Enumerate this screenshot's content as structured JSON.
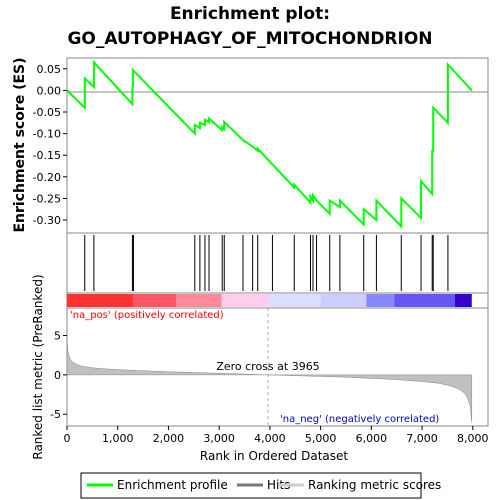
{
  "title_line1": "Enrichment plot:",
  "title_line2": "GO_AUTOPHAGY_OF_MITOCHONDRION",
  "chart_data": {
    "type": "line",
    "es_panel": {
      "ylabel": "Enrichment score (ES)",
      "ylim": [
        -0.33,
        0.075
      ],
      "yticks": [
        "0.05",
        "0.00",
        "-0.05",
        "-0.10",
        "-0.15",
        "-0.20",
        "-0.25",
        "-0.30"
      ],
      "ytick_values": [
        0.05,
        0.0,
        -0.05,
        -0.1,
        -0.15,
        -0.2,
        -0.25,
        -0.3
      ],
      "series": [
        {
          "name": "Enrichment profile",
          "color": "#00ff00",
          "x": [
            0,
            350,
            350,
            530,
            530,
            1290,
            1290,
            1300,
            1300,
            2520,
            2520,
            2620,
            2620,
            2720,
            2720,
            2800,
            2800,
            3060,
            3060,
            3100,
            3100,
            3470,
            3470,
            3660,
            3660,
            3760,
            3760,
            4480,
            4480,
            4800,
            4800,
            4850,
            4850,
            4920,
            4920,
            5180,
            5180,
            5380,
            5380,
            5850,
            5850,
            6100,
            6100,
            6590,
            6590,
            6980,
            6980,
            7200,
            7200,
            7220,
            7220,
            7510,
            7510,
            7980
          ],
          "y": [
            0.0,
            -0.04,
            0.028,
            0.008,
            0.065,
            -0.032,
            0.008,
            0.01,
            0.047,
            -0.1,
            -0.08,
            -0.087,
            -0.075,
            -0.08,
            -0.068,
            -0.073,
            -0.065,
            -0.092,
            -0.085,
            -0.09,
            -0.073,
            -0.115,
            -0.115,
            -0.13,
            -0.13,
            -0.14,
            -0.135,
            -0.225,
            -0.218,
            -0.26,
            -0.245,
            -0.255,
            -0.243,
            -0.255,
            -0.255,
            -0.285,
            -0.255,
            -0.27,
            -0.255,
            -0.31,
            -0.275,
            -0.3,
            -0.255,
            -0.315,
            -0.25,
            -0.295,
            -0.21,
            -0.24,
            -0.14,
            -0.14,
            -0.04,
            -0.075,
            0.06,
            0.0
          ]
        }
      ]
    },
    "hits": {
      "name": "Hits",
      "positions": [
        350,
        530,
        1290,
        1310,
        2520,
        2620,
        2720,
        2800,
        3060,
        3100,
        3470,
        3660,
        3760,
        4050,
        4480,
        4800,
        4850,
        4920,
        5180,
        5380,
        5850,
        6100,
        6590,
        6980,
        7200,
        7220,
        7510
      ]
    },
    "color_bar": {
      "label_pos": "'na_pos' (positively correlated)",
      "label_neg": "'na_neg' (negatively correlated)",
      "segments": [
        {
          "x0": 0,
          "x1": 1300,
          "color": "#ff3333"
        },
        {
          "x0": 1300,
          "x1": 2150,
          "color": "#ff5566"
        },
        {
          "x0": 2150,
          "x1": 3050,
          "color": "#ff8899"
        },
        {
          "x0": 3050,
          "x1": 3980,
          "color": "#ffccee"
        },
        {
          "x0": 3980,
          "x1": 5000,
          "color": "#ddddff"
        },
        {
          "x0": 5000,
          "x1": 5900,
          "color": "#ccccff"
        },
        {
          "x0": 5900,
          "x1": 6450,
          "color": "#8888ff"
        },
        {
          "x0": 6450,
          "x1": 7650,
          "color": "#6655ee"
        },
        {
          "x0": 7650,
          "x1": 7980,
          "color": "#3300cc"
        }
      ]
    },
    "metric_panel": {
      "name": "Ranking metric scores",
      "ylabel": "Ranked list metric (PreRanked)",
      "xlabel": "Rank in Ordered Dataset",
      "ylim": [
        -6.5,
        8.5
      ],
      "yticks": [
        "5",
        "0",
        "-5"
      ],
      "ytick_values": [
        5,
        0,
        -5
      ],
      "xlim": [
        0,
        8300
      ],
      "xticks": [
        "0",
        "1,000",
        "2,000",
        "3,000",
        "4,000",
        "5,000",
        "6,000",
        "7,000",
        "8,000"
      ],
      "xtick_values": [
        0,
        1000,
        2000,
        3000,
        4000,
        5000,
        6000,
        7000,
        8000
      ],
      "zero_cross_label": "Zero cross at 3965",
      "zero_cross": 3965,
      "curve_x": [
        0,
        20,
        60,
        120,
        200,
        300,
        500,
        800,
        1200,
        1600,
        2000,
        2500,
        3000,
        3500,
        3965,
        4500,
        5000,
        5500,
        6000,
        6500,
        7000,
        7300,
        7500,
        7650,
        7750,
        7850,
        7900,
        7950,
        7980
      ],
      "curve_y": [
        4.5,
        3.0,
        2.0,
        1.6,
        1.3,
        1.1,
        0.9,
        0.75,
        0.6,
        0.5,
        0.4,
        0.3,
        0.2,
        0.1,
        0.0,
        -0.1,
        -0.2,
        -0.3,
        -0.45,
        -0.6,
        -0.85,
        -1.05,
        -1.3,
        -1.6,
        -1.9,
        -2.4,
        -3.0,
        -4.0,
        -6.0
      ]
    },
    "legend": [
      "Enrichment profile",
      "Hits",
      "Ranking metric scores"
    ]
  }
}
